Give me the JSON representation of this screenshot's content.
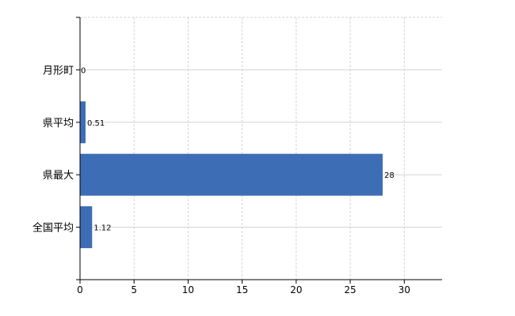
{
  "chart_data": {
    "type": "bar",
    "orientation": "horizontal",
    "title": "",
    "xlabel": "",
    "ylabel": "",
    "categories": [
      "月形町",
      "県平均",
      "県最大",
      "全国平均"
    ],
    "values": [
      0,
      0.51,
      28,
      1.12
    ],
    "data_labels": [
      "0",
      "0.51",
      "28",
      "1.12"
    ],
    "xlim": [
      0,
      33.5
    ],
    "xticks": [
      0,
      5,
      10,
      15,
      20,
      25,
      30
    ],
    "grid": true,
    "legend": "none",
    "colors": {
      "bar": "#3d6db5",
      "grid": "#d3d3d3",
      "axis": "#000000"
    }
  }
}
